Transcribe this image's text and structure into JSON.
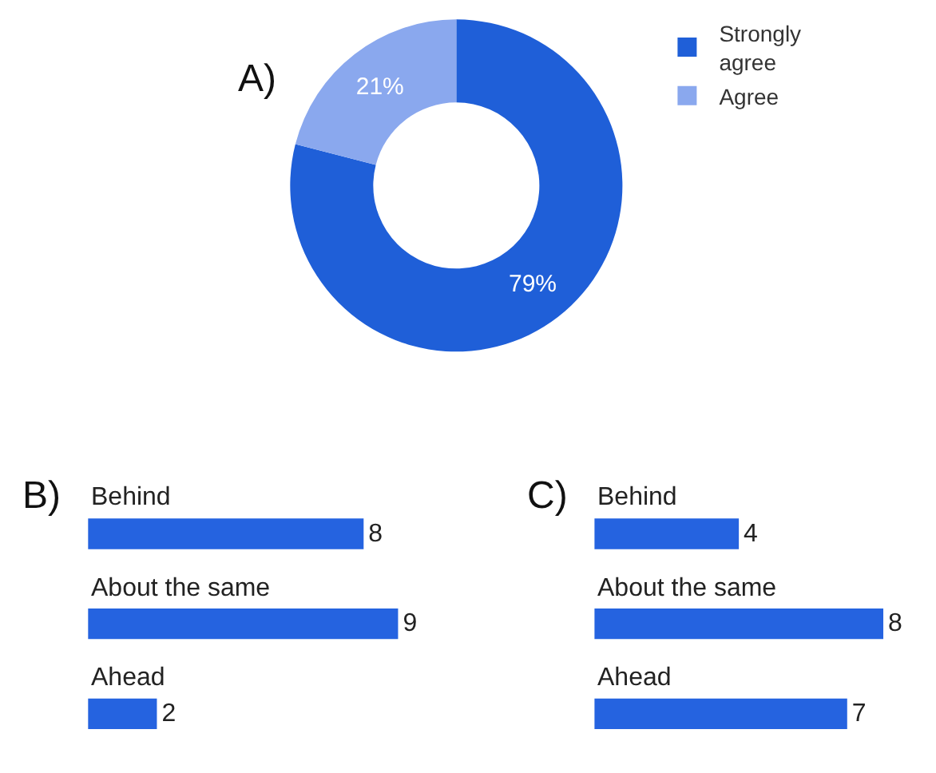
{
  "chart_data": [
    {
      "type": "donut",
      "title": "A)",
      "categories": [
        "Strongly agree",
        "Agree"
      ],
      "values": [
        79,
        21
      ],
      "colors": [
        "#1f5fd8",
        "#8aa8ee"
      ],
      "value_labels": [
        "79%",
        "21%"
      ],
      "legend": "top right"
    },
    {
      "type": "bar",
      "title": "B)",
      "orientation": "horizontal",
      "categories": [
        "Behind",
        "About the same",
        "Ahead"
      ],
      "values": [
        8,
        9,
        2
      ],
      "color": "#2563e0",
      "data_labels": true
    },
    {
      "type": "bar",
      "title": "C)",
      "orientation": "horizontal",
      "categories": [
        "Behind",
        "About the same",
        "Ahead"
      ],
      "values": [
        4,
        8,
        7
      ],
      "color": "#2563e0",
      "data_labels": true
    }
  ]
}
